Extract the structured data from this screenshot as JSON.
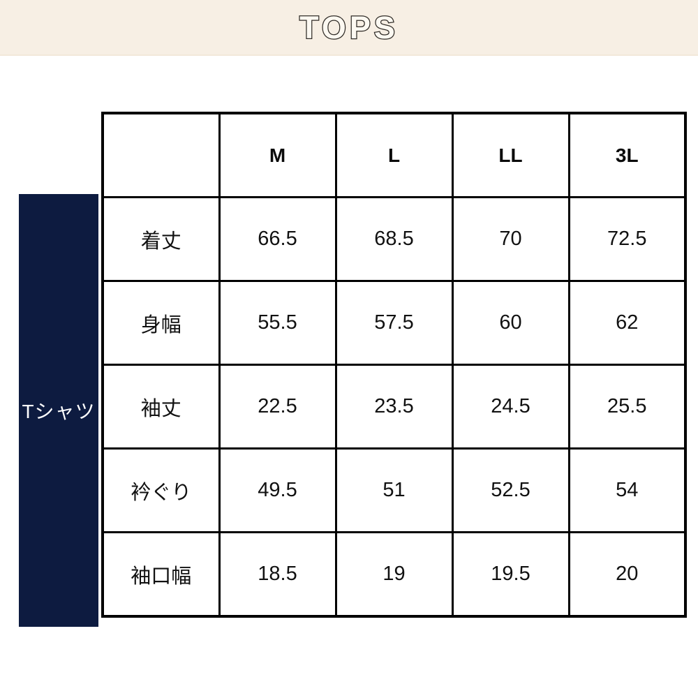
{
  "header": {
    "title": "TOPS"
  },
  "category": {
    "label": "Tシャツ"
  },
  "table": {
    "columns": [
      "M",
      "L",
      "LL",
      "3L"
    ],
    "rows": [
      {
        "label": "着丈",
        "values": [
          "66.5",
          "68.5",
          "70",
          "72.5"
        ]
      },
      {
        "label": "身幅",
        "values": [
          "55.5",
          "57.5",
          "60",
          "62"
        ]
      },
      {
        "label": "袖丈",
        "values": [
          "22.5",
          "23.5",
          "24.5",
          "25.5"
        ]
      },
      {
        "label": "衿ぐり",
        "values": [
          "49.5",
          "51",
          "52.5",
          "54"
        ]
      },
      {
        "label": "袖口幅",
        "values": [
          "18.5",
          "19",
          "19.5",
          "20"
        ]
      }
    ]
  },
  "colors": {
    "banner_bg": "#f7efe4",
    "title_fill": "#fdf9f2",
    "title_outline": "#2e2a25",
    "category_bg": "#0d1b40",
    "category_text": "#ffffff",
    "table_border": "#000000",
    "cell_text": "#111111"
  },
  "chart_data": {
    "type": "table",
    "title": "TOPS",
    "category": "Tシャツ",
    "columns": [
      "",
      "M",
      "L",
      "LL",
      "3L"
    ],
    "rows": [
      [
        "着丈",
        66.5,
        68.5,
        70,
        72.5
      ],
      [
        "身幅",
        55.5,
        57.5,
        60,
        62
      ],
      [
        "袖丈",
        22.5,
        23.5,
        24.5,
        25.5
      ],
      [
        "衿ぐり",
        49.5,
        51,
        52.5,
        54
      ],
      [
        "袖口幅",
        18.5,
        19,
        19.5,
        20
      ]
    ]
  }
}
